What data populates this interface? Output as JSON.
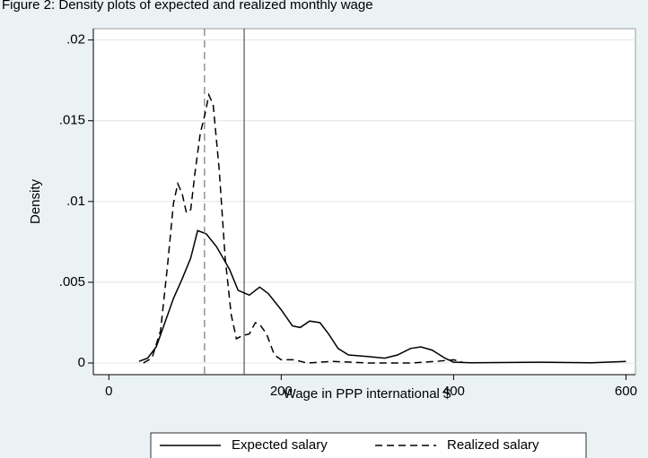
{
  "chart_data": {
    "type": "line",
    "title": "Figure 2: Density plots of expected and realized monthly wage",
    "x_label": "Wage in PPP international $",
    "y_label": "Density",
    "xlim": [
      -18,
      611
    ],
    "ylim": [
      -0.00072,
      0.0207
    ],
    "xticks": [
      0,
      200,
      400,
      600
    ],
    "yticks": [
      0,
      {
        "value": 0.005,
        "label": ".005"
      },
      {
        "value": 0.01,
        "label": ".01"
      },
      {
        "value": 0.015,
        "label": ".015"
      },
      {
        "value": 0.02,
        "label": ".02"
      }
    ],
    "grid": true,
    "legend": "bottom",
    "series": [
      {
        "name": "Expected salary",
        "color": "#000000",
        "dash": "solid",
        "x": [
          35,
          45,
          55,
          65,
          75,
          85,
          95,
          103,
          113,
          125,
          140,
          150,
          163,
          175,
          185,
          200,
          213,
          222,
          233,
          245,
          255,
          266,
          278,
          300,
          320,
          335,
          350,
          362,
          375,
          390,
          400,
          420,
          500,
          560,
          600
        ],
        "values": [
          0.0001,
          0.0003,
          0.001,
          0.0025,
          0.004,
          0.0052,
          0.0065,
          0.0082,
          0.008,
          0.0072,
          0.0058,
          0.0045,
          0.0042,
          0.0047,
          0.0043,
          0.0033,
          0.0023,
          0.0022,
          0.0026,
          0.0025,
          0.0018,
          0.0009,
          0.0005,
          0.0004,
          0.0003,
          0.0005,
          0.0009,
          0.001,
          0.0008,
          0.0003,
          5e-05,
          2e-05,
          5e-05,
          1e-05,
          0.0001
        ],
        "reference_line": 157
      },
      {
        "name": "Realized salary",
        "color": "#000000",
        "dash": "dashed",
        "x": [
          40,
          50,
          60,
          68,
          75,
          80,
          85,
          90,
          95,
          100,
          106,
          112,
          116,
          121,
          128,
          135,
          142,
          148,
          155,
          163,
          170,
          175,
          183,
          192,
          200,
          215,
          230,
          260,
          300,
          350,
          380,
          400,
          410
        ],
        "values": [
          0,
          0.0003,
          0.002,
          0.006,
          0.0099,
          0.0111,
          0.0105,
          0.0093,
          0.0095,
          0.0118,
          0.0142,
          0.0155,
          0.0166,
          0.016,
          0.012,
          0.0065,
          0.003,
          0.0015,
          0.0017,
          0.0018,
          0.0025,
          0.0024,
          0.0018,
          0.0005,
          0.0002,
          0.0002,
          0,
          0.0001,
          0,
          0,
          0.0001,
          0.0002,
          5e-05
        ],
        "reference_line": 111
      }
    ]
  }
}
